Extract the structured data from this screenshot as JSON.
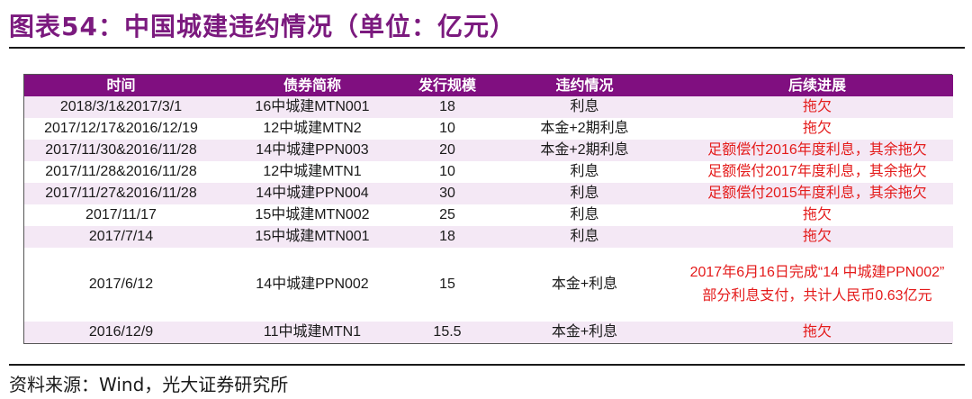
{
  "title": "图表54：中国城建违约情况（单位：亿元）",
  "table": {
    "headers": [
      "时间",
      "债券简称",
      "发行规模",
      "违约情况",
      "后续进展"
    ],
    "rows": [
      {
        "date": "2018/3/1&2017/3/1",
        "bond": "16中城建MTN001",
        "size": "18",
        "default": "利息",
        "progress": "拖欠"
      },
      {
        "date": "2017/12/17&2016/12/19",
        "bond": "12中城建MTN2",
        "size": "10",
        "default": "本金+2期利息",
        "progress": "拖欠"
      },
      {
        "date": "2017/11/30&2016/11/28",
        "bond": "14中城建PPN003",
        "size": "20",
        "default": "本金+2期利息",
        "progress": "足额偿付2016年度利息，其余拖欠"
      },
      {
        "date": "2017/11/28&2016/11/28",
        "bond": "12中城建MTN1",
        "size": "10",
        "default": "利息",
        "progress": "足额偿付2017年度利息，其余拖欠"
      },
      {
        "date": "2017/11/27&2016/11/28",
        "bond": "14中城建PPN004",
        "size": "30",
        "default": "利息",
        "progress": "足额偿付2015年度利息，其余拖欠"
      },
      {
        "date": "2017/11/17",
        "bond": "15中城建MTN002",
        "size": "25",
        "default": "利息",
        "progress": "拖欠"
      },
      {
        "date": "2017/7/14",
        "bond": "15中城建MTN001",
        "size": "18",
        "default": "利息",
        "progress": "拖欠"
      },
      {
        "date": "2017/6/12",
        "bond": "14中城建PPN002",
        "size": "15",
        "default": "本金+利息",
        "progress": "2017年6月16日完成“14 中城建PPN002” 部分利息支付，共计人民币0.63亿元"
      },
      {
        "date": "2016/12/9",
        "bond": "11中城建MTN1",
        "size": "15.5",
        "default": "本金+利息",
        "progress": "拖欠"
      }
    ]
  },
  "source": "资料来源：Wind，光大证券研究所"
}
